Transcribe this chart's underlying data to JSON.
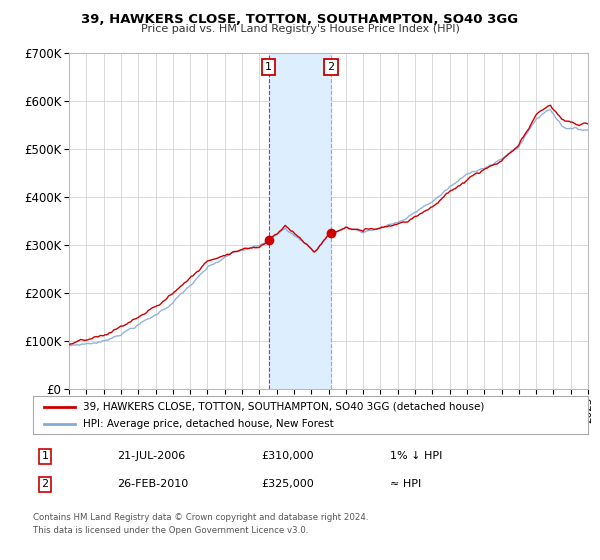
{
  "title": "39, HAWKERS CLOSE, TOTTON, SOUTHAMPTON, SO40 3GG",
  "subtitle": "Price paid vs. HM Land Registry's House Price Index (HPI)",
  "legend_line1": "39, HAWKERS CLOSE, TOTTON, SOUTHAMPTON, SO40 3GG (detached house)",
  "legend_line2": "HPI: Average price, detached house, New Forest",
  "annotation1_label": "1",
  "annotation1_date": "21-JUL-2006",
  "annotation1_price": "£310,000",
  "annotation1_hpi": "1% ↓ HPI",
  "annotation2_label": "2",
  "annotation2_date": "26-FEB-2010",
  "annotation2_price": "£325,000",
  "annotation2_hpi": "≈ HPI",
  "footer1": "Contains HM Land Registry data © Crown copyright and database right 2024.",
  "footer2": "This data is licensed under the Open Government Licence v3.0.",
  "sale1_year": 2006.55,
  "sale1_value": 310000,
  "sale2_year": 2010.15,
  "sale2_value": 325000,
  "hpi_color": "#88aadd",
  "price_color": "#cc0000",
  "shade_color": "#ddeeff",
  "background_color": "#ffffff",
  "grid_color": "#cccccc",
  "ylim": [
    0,
    700000
  ],
  "xlim_start": 1995,
  "xlim_end": 2025,
  "yticks": [
    0,
    100000,
    200000,
    300000,
    400000,
    500000,
    600000,
    700000
  ],
  "ytick_labels": [
    "£0",
    "£100K",
    "£200K",
    "£300K",
    "£400K",
    "£500K",
    "£600K",
    "£700K"
  ]
}
